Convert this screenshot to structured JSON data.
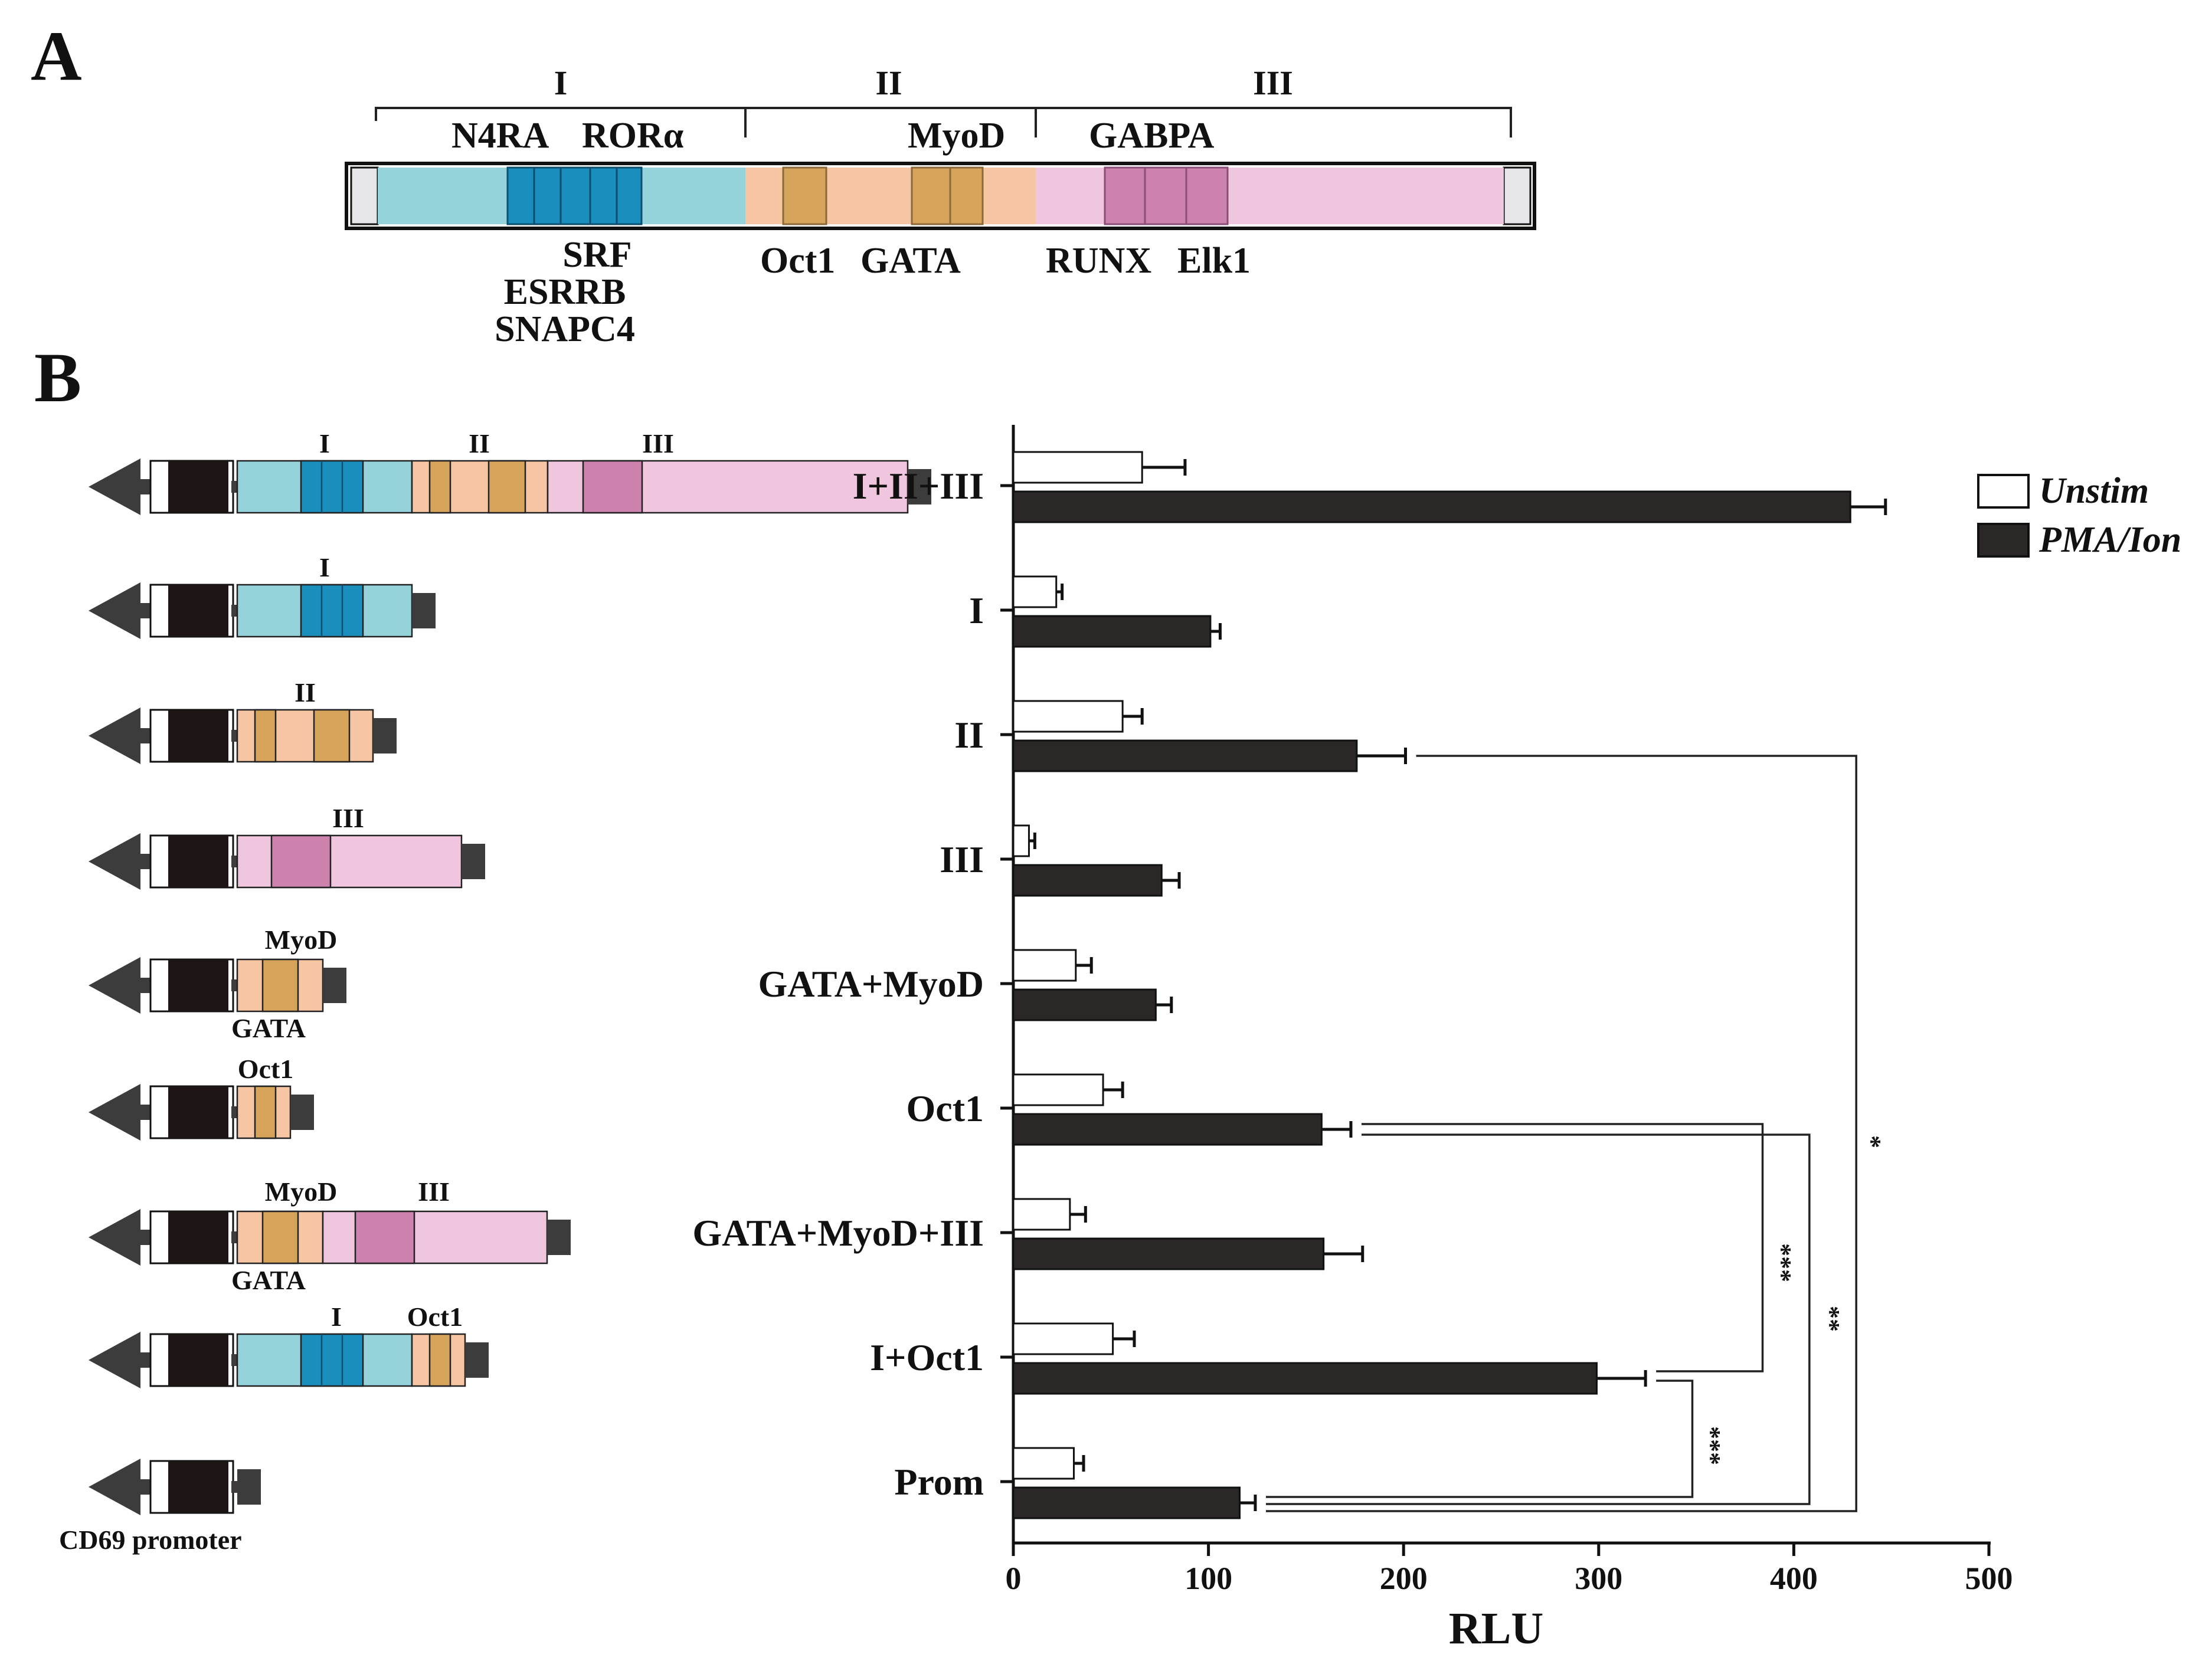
{
  "panels": {
    "a": "A",
    "b": "B"
  },
  "colors": {
    "region1_light": "#96d2da",
    "region1_dark": "#1a8fbd",
    "region2_light": "#f6c6a4",
    "region2_dark": "#d6a35a",
    "region3_light": "#f0c6de",
    "region3_dark": "#cc82ad",
    "promoter": "#1e1614",
    "arrow": "#3c3c3c",
    "bar_unstim": "#ffffff",
    "bar_pma": "#2b2727"
  },
  "panel_a": {
    "regions": [
      "I",
      "II",
      "III"
    ],
    "labels_above": {
      "n4ra": "N4RA",
      "rora": "RORα",
      "myod": "MyoD",
      "gabpa": "GABPA"
    },
    "labels_below": {
      "srf": "SRF",
      "esrrb": "ESRRB",
      "snapc4": "SNAPC4",
      "oct1": "Oct1",
      "gata": "GATA",
      "runx": "RUNX",
      "elk1": "Elk1"
    }
  },
  "panel_b": {
    "constructs": [
      {
        "name": "I+II+III",
        "labels": [
          "I",
          "II",
          "III"
        ]
      },
      {
        "name": "I",
        "labels": [
          "I"
        ]
      },
      {
        "name": "II",
        "labels": [
          "II"
        ]
      },
      {
        "name": "III",
        "labels": [
          "III"
        ]
      },
      {
        "name": "GATA+MyoD",
        "labels": [
          "MyoD",
          "GATA"
        ]
      },
      {
        "name": "Oct1",
        "labels": [
          "Oct1"
        ]
      },
      {
        "name": "GATA+MyoD+III",
        "labels": [
          "MyoD",
          "III",
          "GATA"
        ]
      },
      {
        "name": "I+Oct1",
        "labels": [
          "I",
          "Oct1"
        ]
      },
      {
        "name": "Prom",
        "labels": []
      }
    ],
    "promoter_label": "CD69 promoter"
  },
  "chart_data": {
    "type": "bar",
    "orientation": "horizontal",
    "categories": [
      "I+II+III",
      "I",
      "II",
      "III",
      "GATA+MyoD",
      "Oct1",
      "GATA+MyoD+III",
      "I+Oct1",
      "Prom"
    ],
    "series": [
      {
        "name": "Unstim",
        "values": [
          66,
          22,
          56,
          8,
          32,
          46,
          29,
          51,
          31
        ],
        "errors": [
          22,
          3,
          10,
          3,
          8,
          10,
          8,
          11,
          5
        ]
      },
      {
        "name": "PMA/Ion",
        "values": [
          429,
          101,
          176,
          76,
          73,
          158,
          159,
          299,
          116
        ],
        "errors": [
          18,
          5,
          25,
          9,
          8,
          15,
          20,
          25,
          8
        ]
      }
    ],
    "xlabel": "RLU",
    "xlim": [
      0,
      500
    ],
    "xticks": [
      0,
      100,
      200,
      300,
      400,
      500
    ],
    "legend_position": "top-right",
    "significance": [
      {
        "from": "II",
        "to": "Prom",
        "label": "*"
      },
      {
        "from": "Oct1",
        "to": "I+Oct1",
        "label": "***"
      },
      {
        "from": "Oct1",
        "to": "Prom",
        "label": "**"
      },
      {
        "from": "I+Oct1",
        "to": "Prom",
        "label": "***"
      }
    ]
  }
}
